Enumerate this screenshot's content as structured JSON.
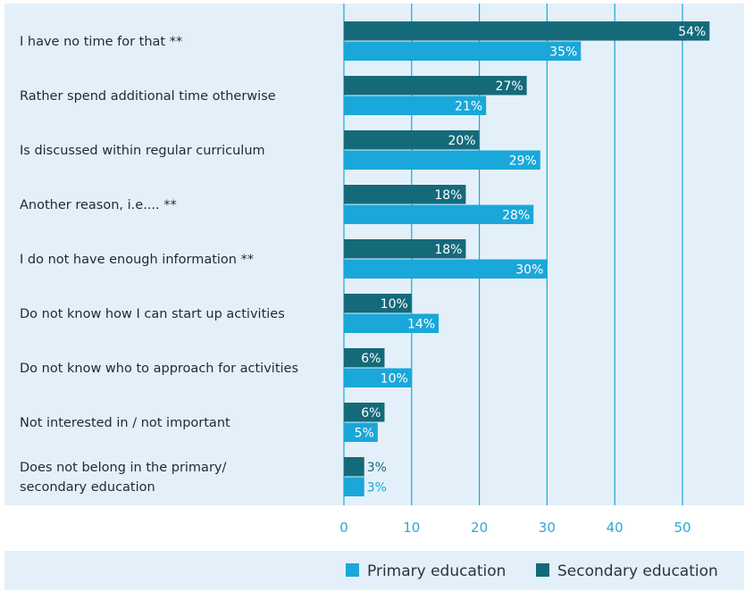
{
  "chart_data": {
    "type": "bar",
    "orientation": "horizontal",
    "categories": [
      [
        "I have no time for that **"
      ],
      [
        "Rather spend additional time otherwise"
      ],
      [
        "Is discussed within regular curriculum"
      ],
      [
        "Another reason, i.e.... **"
      ],
      [
        "I do not have enough information **"
      ],
      [
        "Do not know how I can start up activities"
      ],
      [
        "Do not know who to approach for activities"
      ],
      [
        "Not interested in / not important"
      ],
      [
        "Does not belong in the primary/",
        "secondary education"
      ]
    ],
    "series": [
      {
        "name": "Secondary education",
        "color": "#156a7a",
        "values": [
          54,
          27,
          20,
          18,
          18,
          10,
          6,
          6,
          3
        ],
        "labels": [
          "54%",
          "27%",
          "20%",
          "18%",
          "18%",
          "10%",
          "6%",
          "6%",
          "3%"
        ]
      },
      {
        "name": "Primary education",
        "color": "#1aa7d9",
        "values": [
          35,
          21,
          29,
          28,
          30,
          14,
          10,
          5,
          3
        ],
        "labels": [
          "35%",
          "21%",
          "29%",
          "28%",
          "30%",
          "14%",
          "10%",
          "5%",
          "3%"
        ]
      }
    ],
    "xlim": [
      0,
      55
    ],
    "xticks": [
      0,
      10,
      20,
      30,
      40,
      50
    ],
    "xtick_labels": [
      "0",
      "10",
      "20",
      "30",
      "40",
      "50"
    ],
    "legend": {
      "placement": "bottom-right",
      "entries": [
        "Primary education",
        "Secondary education"
      ]
    },
    "grid": true
  },
  "colors": {
    "plot_background": "#e4f0f9",
    "gridline": "#1aa7d9",
    "tick_text": "#2ea7d6"
  }
}
